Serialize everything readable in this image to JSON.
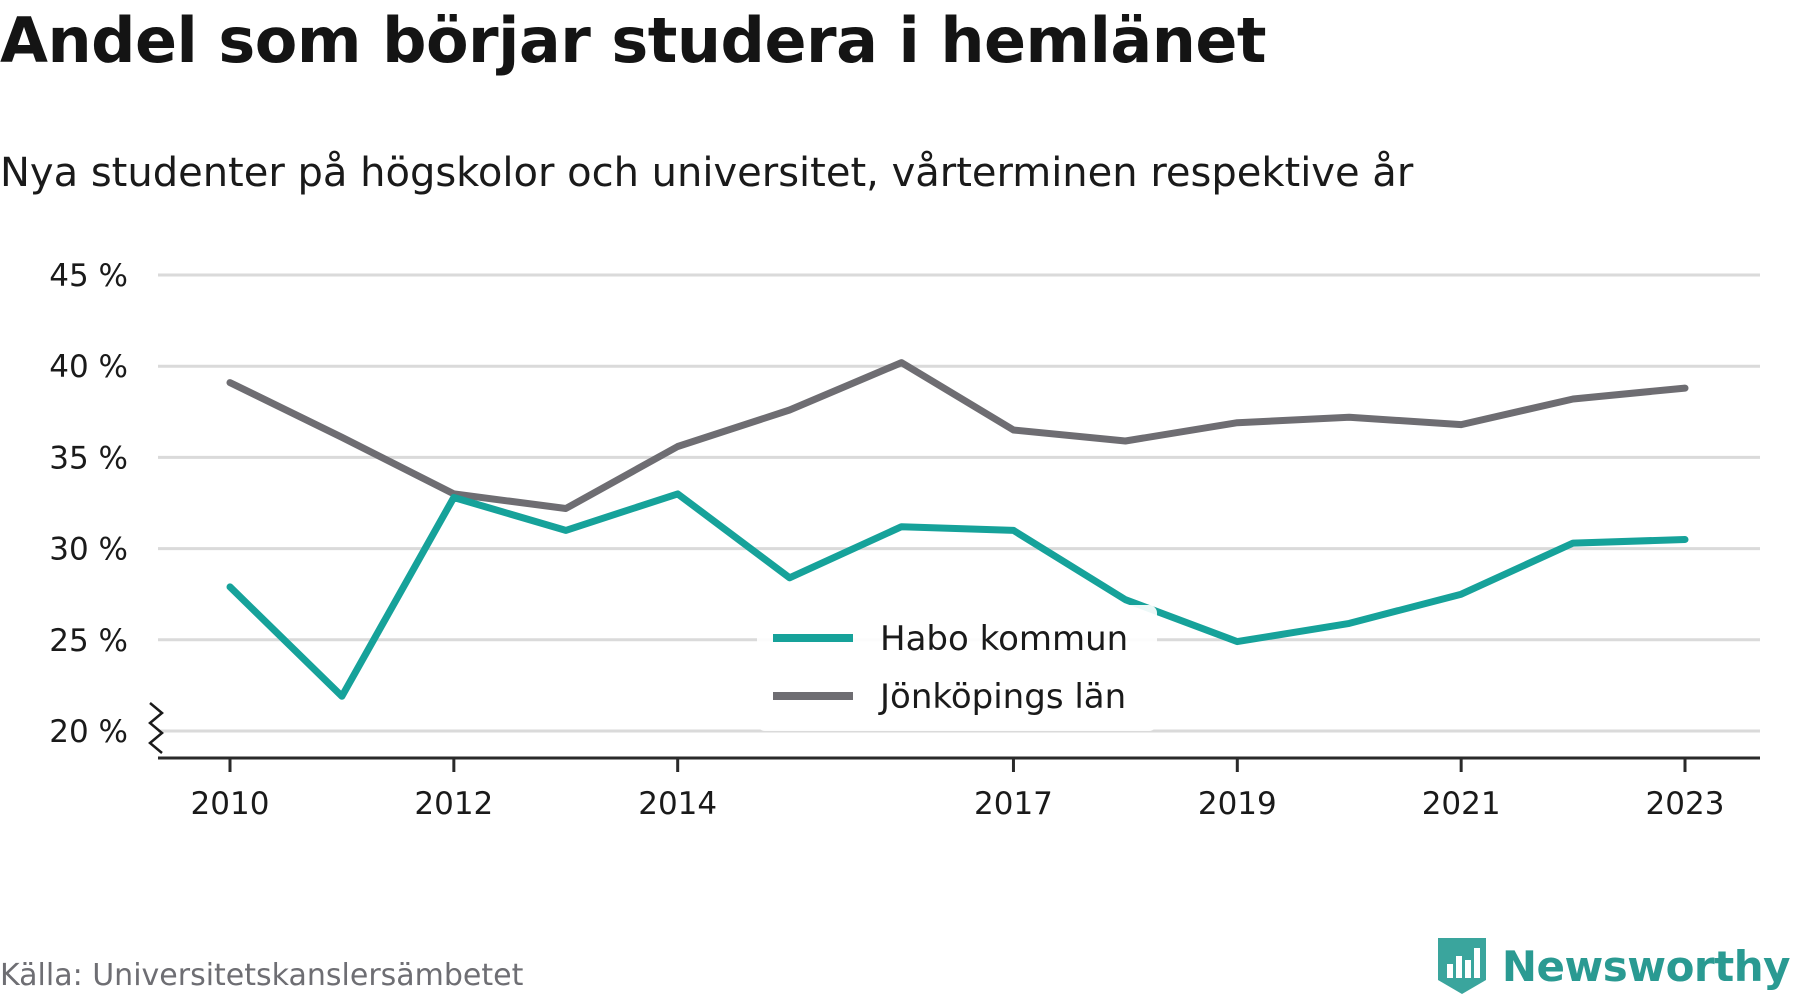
{
  "header": {
    "title": "Andel som börjar studera i hemlänet",
    "subtitle": "Nya studenter på högskolor och universitet, vårterminen respektive år"
  },
  "footer": {
    "source": "Källa: Universitetskanslersämbetet",
    "brand": "Newsworthy",
    "brand_icon": "bar-chart-shield-icon"
  },
  "chart_data": {
    "type": "line",
    "x": [
      2010,
      2011,
      2012,
      2013,
      2014,
      2015,
      2016,
      2017,
      2018,
      2019,
      2020,
      2021,
      2022,
      2023
    ],
    "x_tick_values": [
      2010,
      2012,
      2014,
      2017,
      2019,
      2021,
      2023
    ],
    "x_tick_labels": [
      "2010",
      "2012",
      "2014",
      "2017",
      "2019",
      "2021",
      "2023"
    ],
    "xlim": [
      2010,
      2023
    ],
    "y_tick_values": [
      20,
      25,
      30,
      35,
      40,
      45
    ],
    "y_tick_labels": [
      "20 %",
      "25 %",
      "30 %",
      "35 %",
      "40 %",
      "45 %"
    ],
    "ylim": [
      20,
      45
    ],
    "y_axis_break": true,
    "grid": true,
    "legend_position": "bottom-center",
    "series": [
      {
        "name": "Habo kommun",
        "color": "#16a29a",
        "values": [
          27.9,
          21.9,
          32.8,
          31.0,
          33.0,
          28.4,
          31.2,
          31.0,
          27.2,
          24.9,
          25.9,
          27.5,
          30.3,
          30.5
        ]
      },
      {
        "name": "Jönköpings län",
        "color": "#6e6d72",
        "values": [
          39.1,
          36.1,
          33.0,
          32.2,
          35.6,
          37.6,
          40.2,
          36.5,
          35.9,
          36.9,
          37.2,
          36.8,
          38.2,
          38.8
        ]
      }
    ]
  }
}
